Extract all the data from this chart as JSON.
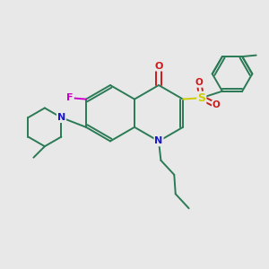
{
  "bg_color": "#e8e8e8",
  "bond_color": "#2a7a55",
  "atom_colors": {
    "N": "#1a1acc",
    "O": "#cc1a1a",
    "F": "#cc00cc",
    "S": "#cccc00"
  },
  "figsize": [
    3.0,
    3.0
  ],
  "dpi": 100
}
